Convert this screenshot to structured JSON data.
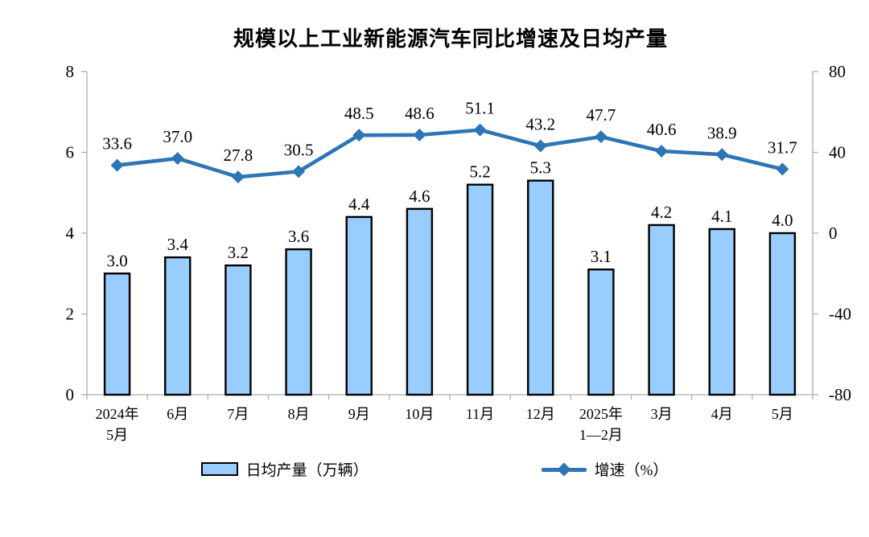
{
  "chart_data": {
    "type": "combo_bar_line",
    "title": "规模以上工业新能源汽车同比增速及日均产量",
    "categories": [
      "2024年5月",
      "6月",
      "7月",
      "8月",
      "9月",
      "10月",
      "11月",
      "12月",
      "2025年1—2月",
      "3月",
      "4月",
      "5月"
    ],
    "category_label_lines": [
      [
        "2024年",
        "5月"
      ],
      [
        "6月"
      ],
      [
        "7月"
      ],
      [
        "8月"
      ],
      [
        "9月"
      ],
      [
        "10月"
      ],
      [
        "11月"
      ],
      [
        "12月"
      ],
      [
        "2025年",
        "1—2月"
      ],
      [
        "3月"
      ],
      [
        "4月"
      ],
      [
        "5月"
      ]
    ],
    "series": [
      {
        "name": "日均产量（万辆）",
        "type": "bar",
        "axis": "left",
        "values": [
          3.0,
          3.4,
          3.2,
          3.6,
          4.4,
          4.6,
          5.2,
          5.3,
          3.1,
          4.2,
          4.1,
          4.0
        ],
        "value_labels": [
          "3.0",
          "3.4",
          "3.2",
          "3.6",
          "4.4",
          "4.6",
          "5.2",
          "5.3",
          "3.1",
          "4.2",
          "4.1",
          "4.0"
        ]
      },
      {
        "name": "增速（%）",
        "type": "line",
        "axis": "right",
        "marker": "diamond",
        "values": [
          33.6,
          37.0,
          27.8,
          30.5,
          48.5,
          48.6,
          51.1,
          43.2,
          47.7,
          40.6,
          38.9,
          31.7
        ],
        "value_labels": [
          "33.6",
          "37.0",
          "27.8",
          "30.5",
          "48.5",
          "48.6",
          "51.1",
          "43.2",
          "47.7",
          "40.6",
          "38.9",
          "31.7"
        ]
      }
    ],
    "left_axis": {
      "min": 0,
      "max": 8,
      "ticks": [
        0,
        2,
        4,
        6,
        8
      ],
      "tick_labels": [
        "0",
        "2",
        "4",
        "6",
        "8"
      ]
    },
    "right_axis": {
      "min": -80,
      "max": 80,
      "ticks": [
        -80,
        -40,
        0,
        40,
        80
      ],
      "tick_labels": [
        "-80",
        "-40",
        "0",
        "40",
        "80"
      ]
    },
    "grid": false,
    "legend_position": "bottom"
  },
  "legend": {
    "bar_label": "日均产量（万辆）",
    "line_label": "增速（%）"
  },
  "colors": {
    "background": "#FFFFFF",
    "bar_fill": "#99CCFF",
    "bar_stroke": "#000000",
    "line": "#2E75B6",
    "axis": "#ADADAD",
    "text": "#000000"
  }
}
